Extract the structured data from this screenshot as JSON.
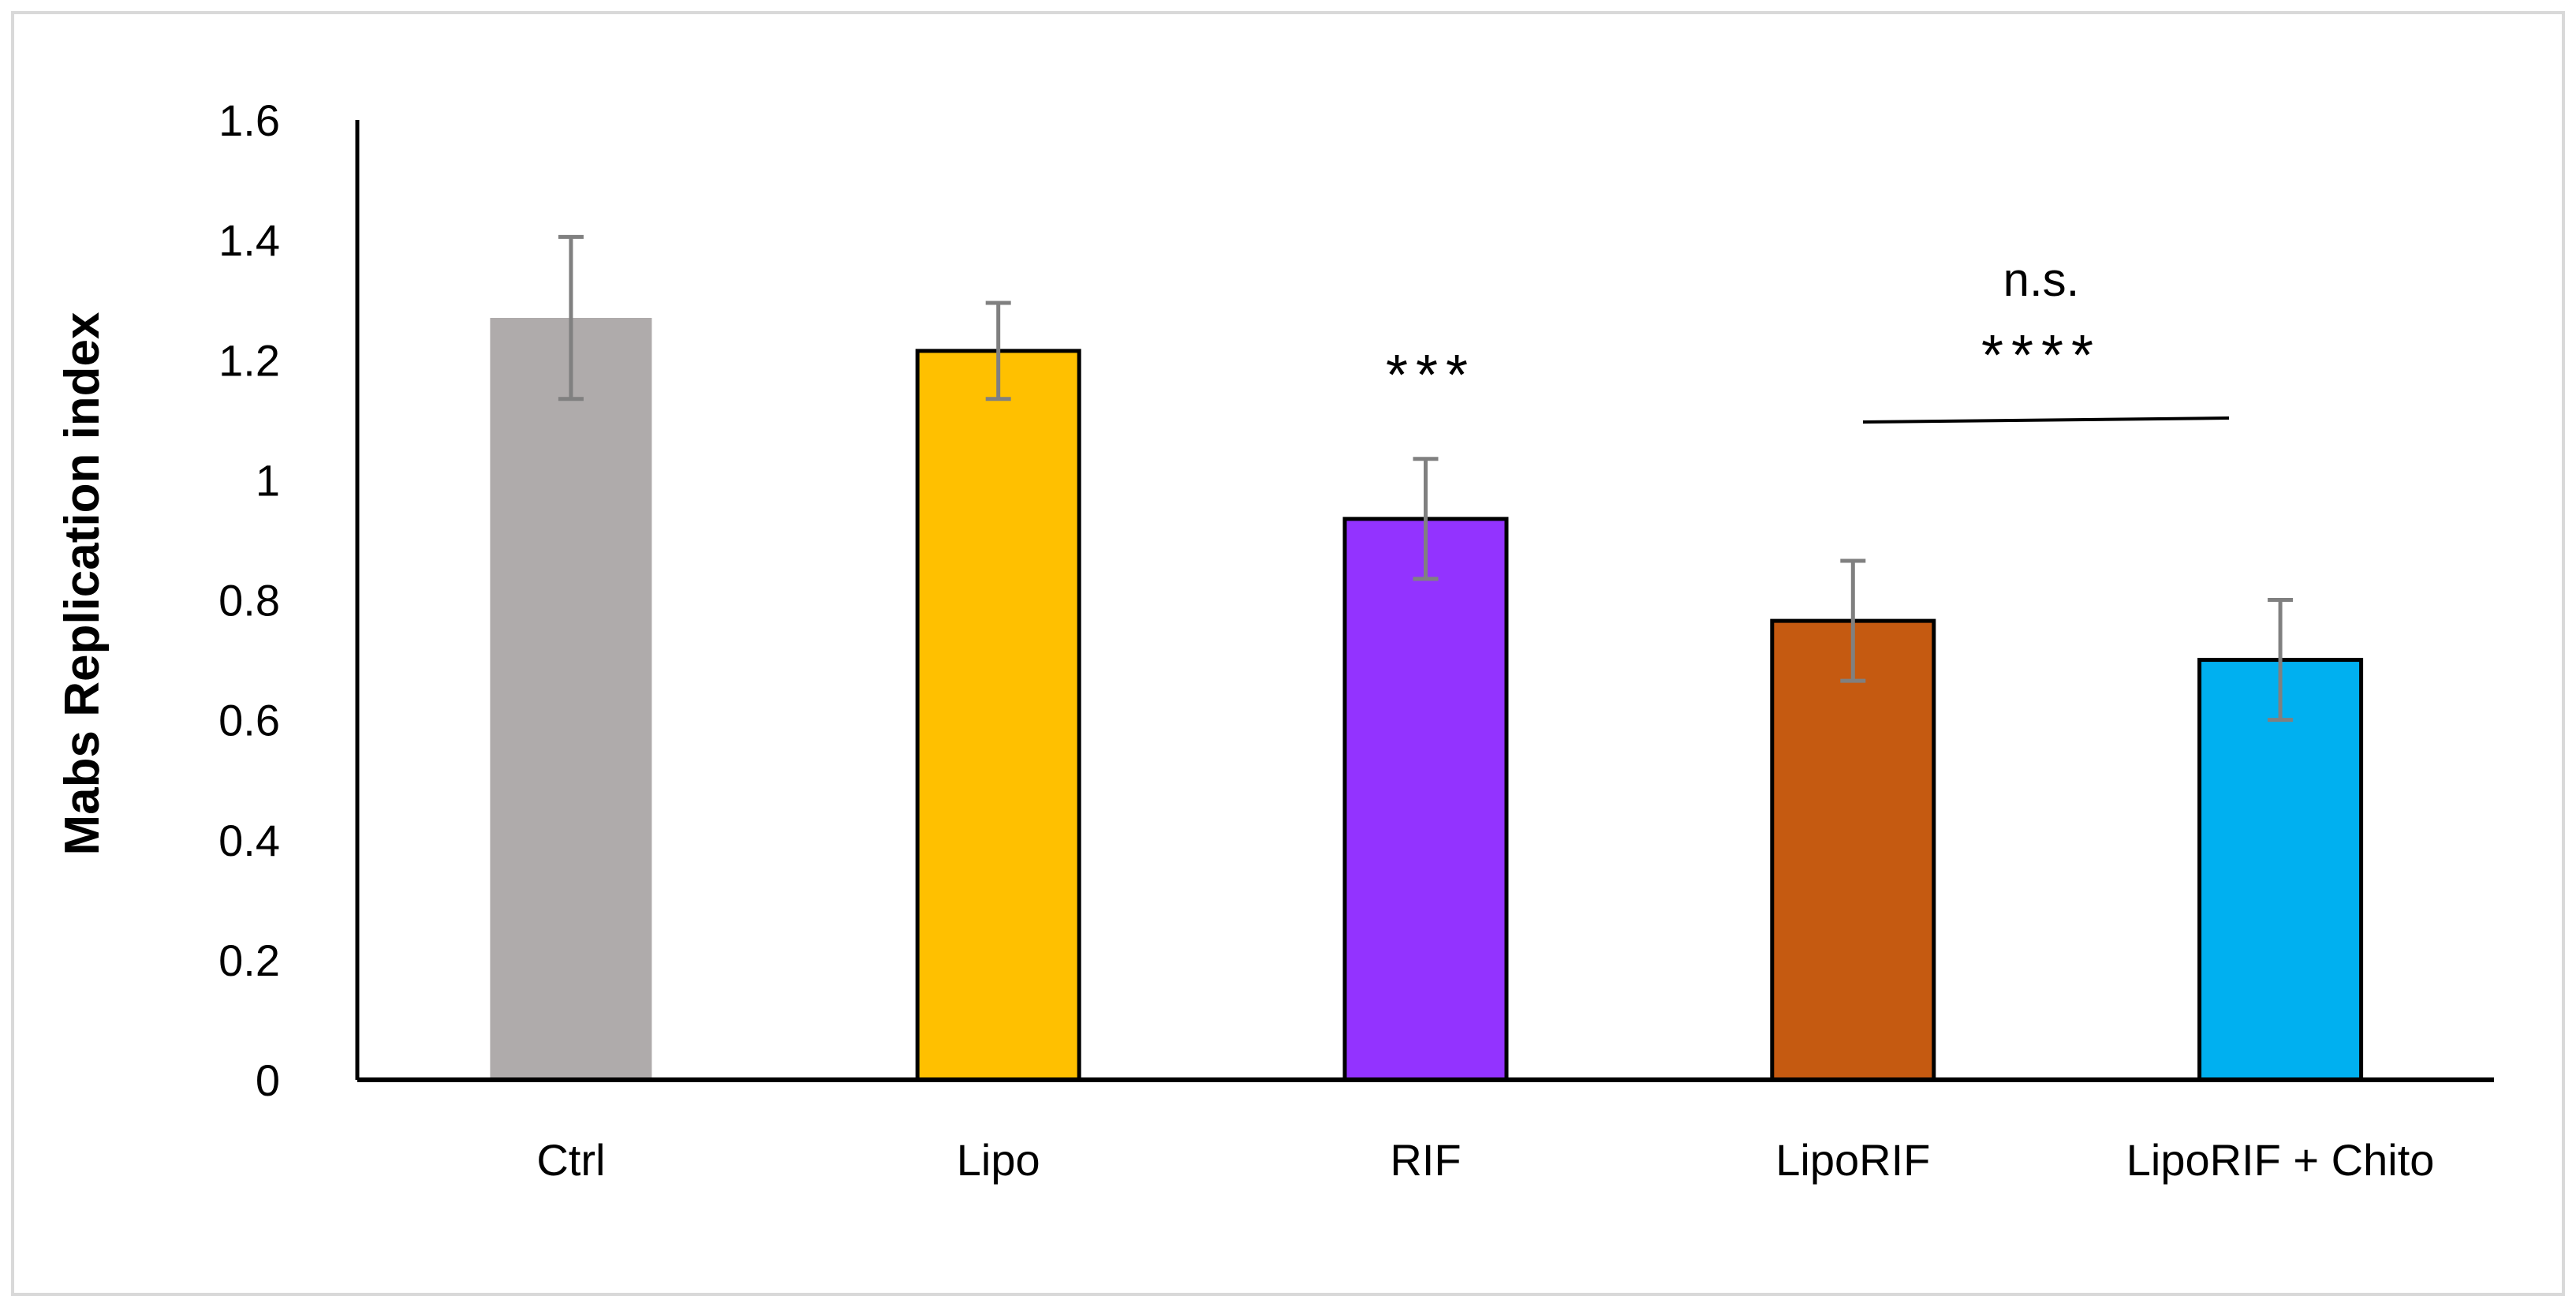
{
  "chart_data": {
    "type": "bar",
    "categories": [
      "Ctrl",
      "Lipo",
      "RIF",
      "LipoRIF",
      "LipoRIF + Chito"
    ],
    "values": [
      1.27,
      1.215,
      0.935,
      0.765,
      0.7
    ],
    "error": [
      0.135,
      0.08,
      0.1,
      0.1,
      0.1
    ],
    "colors": [
      "#afabab",
      "#ffc000",
      "#9333ff",
      "#c55a11",
      "#00b0f0"
    ],
    "bar_outline": [
      false,
      true,
      true,
      true,
      true
    ],
    "xlabel": "",
    "ylabel": "Mabs Replication index",
    "ylim": [
      0,
      1.6
    ],
    "yticks": [
      "0",
      "0.2",
      "0.4",
      "0.6",
      "0.8",
      "1",
      "1.2",
      "1.4",
      "1.6"
    ],
    "grid": false,
    "legend": "none",
    "annotations": {
      "rif_significance": "***",
      "comparison_significance": "****",
      "comparison_ns": "n.s."
    }
  }
}
